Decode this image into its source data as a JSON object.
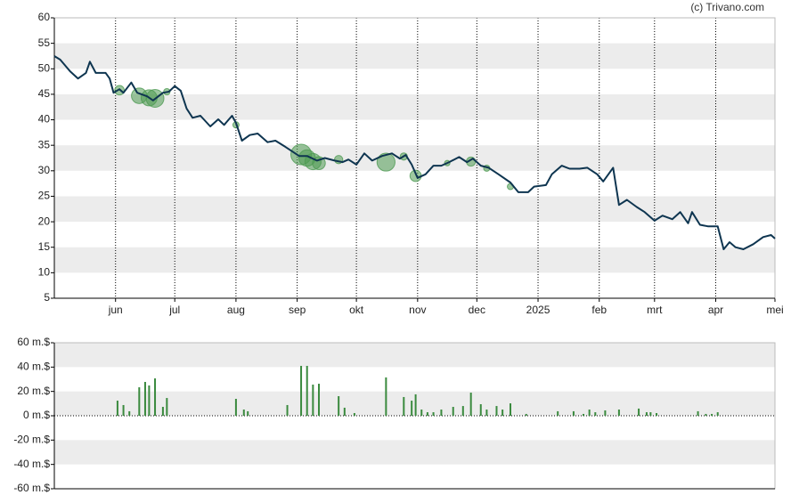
{
  "chart_data": [
    {
      "type": "line",
      "source": "(c) Trivano.com",
      "xlim": [
        0,
        365
      ],
      "xticks": [
        {
          "value": 31,
          "label": "jun"
        },
        {
          "value": 61,
          "label": "jul"
        },
        {
          "value": 92,
          "label": "aug"
        },
        {
          "value": 123,
          "label": "sep"
        },
        {
          "value": 153,
          "label": "okt"
        },
        {
          "value": 184,
          "label": "nov"
        },
        {
          "value": 214,
          "label": "dec"
        },
        {
          "value": 245,
          "label": "2025"
        },
        {
          "value": 276,
          "label": "feb"
        },
        {
          "value": 304,
          "label": "mrt"
        },
        {
          "value": 335,
          "label": "apr"
        },
        {
          "value": 365,
          "label": "mei"
        }
      ],
      "ylim": [
        5,
        60
      ],
      "yticks": [
        5,
        10,
        15,
        20,
        25,
        30,
        35,
        40,
        45,
        50,
        55,
        60
      ],
      "grid": true,
      "color": "#0e3550",
      "x": [
        0,
        3,
        8,
        12,
        16,
        18,
        21,
        26,
        28,
        30,
        33,
        35,
        39,
        42,
        47,
        50,
        55,
        58,
        61,
        64,
        67,
        70,
        74,
        79,
        83,
        86,
        90,
        92,
        95,
        99,
        103,
        108,
        112,
        117,
        124,
        128,
        133,
        137,
        142,
        146,
        149,
        153,
        157,
        161,
        166,
        171,
        175,
        178,
        181,
        184,
        188,
        192,
        196,
        200,
        205,
        209,
        212,
        216,
        220,
        225,
        231,
        235,
        240,
        243,
        249,
        252,
        257,
        261,
        266,
        270,
        275,
        278,
        283,
        286,
        290,
        295,
        299,
        304,
        308,
        313,
        317,
        321,
        323,
        327,
        331,
        336,
        339,
        342,
        345,
        349,
        354,
        359,
        363,
        365
      ],
      "values": [
        52.5,
        51.8,
        49.5,
        48.1,
        49.2,
        51.4,
        49.2,
        49.2,
        48.1,
        45.3,
        46,
        45.3,
        47.3,
        45.3,
        44.6,
        43.8,
        45.3,
        45.5,
        46.6,
        45.7,
        42.2,
        40.4,
        40.8,
        38.7,
        40.1,
        39,
        40.8,
        39.4,
        35.9,
        37,
        37.3,
        35.6,
        35.9,
        34.7,
        32.9,
        32.9,
        32,
        32.5,
        32,
        31.7,
        32.2,
        31.2,
        33.4,
        32,
        32.9,
        33.4,
        32.4,
        33.1,
        31.2,
        28.6,
        29.3,
        31,
        31,
        31.7,
        32.7,
        31.7,
        32.4,
        31,
        30.6,
        29.3,
        27.7,
        25.8,
        25.8,
        26.9,
        27.2,
        29.3,
        31,
        30.4,
        30.4,
        30.6,
        29.3,
        27.9,
        30.6,
        23.3,
        24.3,
        22.9,
        21.9,
        20.2,
        21.2,
        20.5,
        21.9,
        19.7,
        21.9,
        19.4,
        19.1,
        19.1,
        14.6,
        16,
        15,
        14.6,
        15.6,
        17,
        17.4,
        16.7
      ],
      "bubbles": {
        "color": "#4e9a52",
        "x": [
          33,
          43,
          48,
          51,
          57,
          92,
          125,
          128,
          131,
          134,
          144,
          168,
          177,
          183,
          199,
          211,
          219,
          231
        ],
        "values": [
          45.8,
          44.7,
          44.3,
          44.2,
          45.5,
          39,
          33.2,
          32.5,
          31.8,
          31.5,
          32.2,
          31.7,
          32.8,
          29,
          31.5,
          31.8,
          30.5,
          26.9
        ],
        "sizes": [
          8.8,
          23.4,
          24.9,
          30.7,
          4,
          3.7,
          41,
          26.3,
          25.6,
          16.1,
          6.6,
          31.5,
          5.1,
          12.4,
          2.9,
          8,
          3.7,
          3.7
        ]
      }
    },
    {
      "type": "bar",
      "color": "#3a8a3e",
      "xlim": [
        0,
        365
      ],
      "ylim": [
        -60,
        60
      ],
      "yticks": [
        {
          "value": -60,
          "label": "-60 m.$"
        },
        {
          "value": -40,
          "label": "-40 m.$"
        },
        {
          "value": -20,
          "label": "-20 m.$"
        },
        {
          "value": 0,
          "label": "0 m.$"
        },
        {
          "value": 20,
          "label": "20 m.$"
        },
        {
          "value": 40,
          "label": "40 m.$"
        },
        {
          "value": 60,
          "label": "60 m.$"
        }
      ],
      "x": [
        32,
        35,
        38,
        43,
        46,
        48,
        51,
        55,
        57,
        92,
        96,
        98,
        118,
        125,
        128,
        131,
        134,
        144,
        147,
        152,
        168,
        177,
        181,
        183,
        186,
        189,
        192,
        196,
        202,
        207,
        211,
        216,
        219,
        224,
        227,
        231,
        239,
        255,
        263,
        268,
        271,
        274,
        279,
        286,
        296,
        300,
        302,
        305,
        326,
        330,
        333,
        336
      ],
      "values": [
        12.4,
        8.8,
        3.7,
        23.4,
        27.8,
        24.9,
        30.7,
        7.3,
        14.6,
        13.9,
        5.1,
        3.7,
        8.8,
        41,
        41,
        25.6,
        26.3,
        16.1,
        6.6,
        2.2,
        31.5,
        15.4,
        12.4,
        17.6,
        5.1,
        2.9,
        2.9,
        5.1,
        7.3,
        8,
        19,
        9.5,
        5.1,
        8,
        5.1,
        10.2,
        1.5,
        3.7,
        3.7,
        1.5,
        5.1,
        2.9,
        4.4,
        5.1,
        5.9,
        2.9,
        2.9,
        2.2,
        3.7,
        1.5,
        1.5,
        2.9
      ]
    }
  ]
}
